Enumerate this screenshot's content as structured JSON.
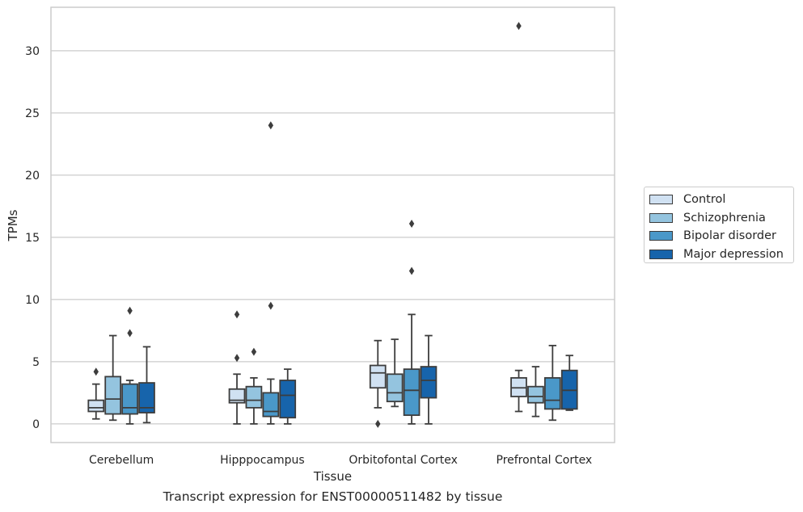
{
  "chart_data": {
    "type": "box",
    "title": "",
    "caption": "Transcript expression for ENST00000511482 by tissue",
    "xlabel": "Tissue",
    "ylabel": "TPMs",
    "ylim": [
      -1.5,
      33.5
    ],
    "yticks": [
      0,
      5,
      10,
      15,
      20,
      25,
      30
    ],
    "grid": "horizontal",
    "legend_position": "right",
    "categories": [
      "Cerebellum",
      "Hipppocampus",
      "Orbitofontal Cortex",
      "Prefrontal Cortex"
    ],
    "series": [
      {
        "name": "Control",
        "color": "#d0e1f2",
        "boxes": [
          {
            "whislo": 0.4,
            "q1": 1.0,
            "med": 1.3,
            "q3": 1.9,
            "whishi": 3.2,
            "fliers": [
              4.2
            ]
          },
          {
            "whislo": 0.0,
            "q1": 1.7,
            "med": 1.9,
            "q3": 2.8,
            "whishi": 4.0,
            "fliers": [
              5.3,
              8.8
            ]
          },
          {
            "whislo": 1.3,
            "q1": 2.9,
            "med": 4.1,
            "q3": 4.7,
            "whishi": 6.7,
            "fliers": [
              0.0
            ]
          },
          {
            "whislo": 1.0,
            "q1": 2.2,
            "med": 2.9,
            "q3": 3.7,
            "whishi": 4.3,
            "fliers": [
              32.0
            ]
          }
        ]
      },
      {
        "name": "Schizophrenia",
        "color": "#94c4df",
        "boxes": [
          {
            "whislo": 0.3,
            "q1": 0.8,
            "med": 2.0,
            "q3": 3.8,
            "whishi": 7.1,
            "fliers": []
          },
          {
            "whislo": 0.0,
            "q1": 1.3,
            "med": 1.9,
            "q3": 3.0,
            "whishi": 3.7,
            "fliers": [
              5.8
            ]
          },
          {
            "whislo": 1.4,
            "q1": 1.8,
            "med": 2.5,
            "q3": 4.0,
            "whishi": 6.8,
            "fliers": []
          },
          {
            "whislo": 0.6,
            "q1": 1.7,
            "med": 2.2,
            "q3": 3.0,
            "whishi": 4.6,
            "fliers": []
          }
        ]
      },
      {
        "name": "Bipolar disorder",
        "color": "#4a98c9",
        "boxes": [
          {
            "whislo": 0.0,
            "q1": 0.8,
            "med": 1.3,
            "q3": 3.2,
            "whishi": 3.5,
            "fliers": [
              7.3,
              9.1
            ]
          },
          {
            "whislo": 0.0,
            "q1": 0.6,
            "med": 1.0,
            "q3": 2.5,
            "whishi": 3.6,
            "fliers": [
              9.5,
              24.0
            ]
          },
          {
            "whislo": 0.0,
            "q1": 0.7,
            "med": 2.7,
            "q3": 4.4,
            "whishi": 8.8,
            "fliers": [
              12.3,
              16.1
            ]
          },
          {
            "whislo": 0.3,
            "q1": 1.2,
            "med": 1.9,
            "q3": 3.7,
            "whishi": 6.3,
            "fliers": []
          }
        ]
      },
      {
        "name": "Major depression",
        "color": "#1764ab",
        "boxes": [
          {
            "whislo": 0.1,
            "q1": 0.9,
            "med": 1.3,
            "q3": 3.3,
            "whishi": 6.2,
            "fliers": []
          },
          {
            "whislo": 0.0,
            "q1": 0.5,
            "med": 2.3,
            "q3": 3.5,
            "whishi": 4.4,
            "fliers": []
          },
          {
            "whislo": 0.0,
            "q1": 2.1,
            "med": 3.5,
            "q3": 4.6,
            "whishi": 7.1,
            "fliers": []
          },
          {
            "whislo": 1.1,
            "q1": 1.2,
            "med": 2.7,
            "q3": 4.3,
            "whishi": 5.5,
            "fliers": []
          }
        ]
      }
    ]
  }
}
